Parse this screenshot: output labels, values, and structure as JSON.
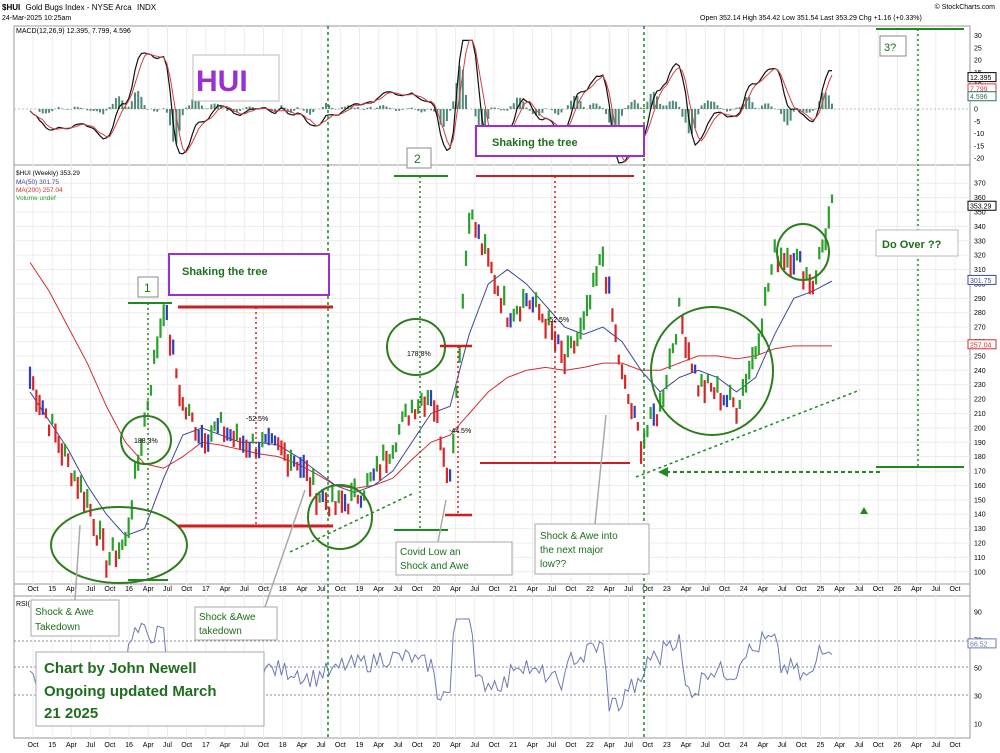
{
  "header": {
    "symbol": "$HUI",
    "name": "Gold Bugs Index - NYSE Arca",
    "exchange": "INDX",
    "date": "24-Mar-2025 10:25am",
    "ohlc": "Open 352.14 High 354.42 Low 351.54 Last 353.29 Chg +1.16 (+0.33%)",
    "credit": "© StockCharts.com"
  },
  "macd_panel": {
    "legend": "MACD(12,26,9) 12.395, 7.799, 4.596",
    "title": "HUI",
    "y_ticks": [
      "30",
      "25",
      "20",
      "15",
      "10",
      "5",
      "0",
      "-5",
      "-10",
      "-15",
      "-20"
    ],
    "value_labels": [
      "12.395",
      "7.799",
      "4.596"
    ]
  },
  "price_panel": {
    "legend": [
      "$HUI (Weekly) 353.29",
      "MA(50) 301.75",
      "MA(200) 257.04",
      "Volume undef"
    ],
    "y_ticks": [
      "370",
      "360",
      "350",
      "340",
      "330",
      "320",
      "310",
      "300",
      "290",
      "280",
      "270",
      "260",
      "250",
      "240",
      "230",
      "220",
      "210",
      "200",
      "190",
      "180",
      "170",
      "160",
      "150",
      "140",
      "130",
      "120",
      "110",
      "100"
    ],
    "value_labels": [
      "353.29",
      "301.75",
      "257.04"
    ]
  },
  "rsi_panel": {
    "legend": "RSI(14) 66.52",
    "y_ticks": [
      "90",
      "70",
      "50",
      "30",
      "10"
    ],
    "value_label": "66.52"
  },
  "x_axis": {
    "labels": [
      "Oct",
      "15",
      "Apr",
      "Jul",
      "Oct",
      "16",
      "Apr",
      "Jul",
      "Oct",
      "17",
      "Apr",
      "Jul",
      "Oct",
      "18",
      "Apr",
      "Jul",
      "Oct",
      "19",
      "Apr",
      "Jul",
      "Oct",
      "20",
      "Apr",
      "Jul",
      "Oct",
      "21",
      "Apr",
      "Jul",
      "Oct",
      "22",
      "Apr",
      "Jul",
      "Oct",
      "23",
      "Apr",
      "Jul",
      "Oct",
      "24",
      "Apr",
      "Jul",
      "Oct",
      "25",
      "Apr",
      "Jul",
      "Oct",
      "26",
      "Apr",
      "Jul",
      "Oct"
    ]
  },
  "annotations": {
    "wave1": "1",
    "wave2": "2",
    "wave3": "3?",
    "shaking1": "Shaking the tree",
    "shaking2": "Shaking the tree",
    "pct_188": "188.3%",
    "pct_52a": "-52.5%",
    "pct_178": "178.8%",
    "pct_44": "-44.5%",
    "pct_52b": "-52.5%",
    "do_over": "Do Over ??",
    "shock1": [
      "Shock & Awe",
      "Takedown"
    ],
    "shock2": [
      "Shock &Awe",
      "takedown"
    ],
    "covid": [
      "Covid Low an",
      "Shock and Awe"
    ],
    "shock3": [
      "Shock & Awe into",
      "the next major",
      "low??"
    ],
    "credit": [
      "Chart by John Newell",
      "Ongoing updated March",
      "21 2025"
    ]
  },
  "colors": {
    "up": "#2ca02c",
    "down": "#d62728",
    "neutral": "#2b3fbf",
    "ma50": "#3a4a9a",
    "ma200": "#d03030",
    "annotation_green": "#2e7d1e",
    "annotation_red": "#cc1f1f",
    "annotation_purple": "#9b30d0",
    "guide_green": "#1f8a1f"
  },
  "chart_data": {
    "type": "line",
    "title": "$HUI Gold Bugs Index - NYSE Arca (Weekly)",
    "x": [
      "2014-10",
      "2015-01",
      "2015-04",
      "2015-07",
      "2015-10",
      "2016-01",
      "2016-04",
      "2016-07",
      "2016-10",
      "2017-01",
      "2017-04",
      "2017-07",
      "2017-10",
      "2018-01",
      "2018-04",
      "2018-07",
      "2018-10",
      "2019-01",
      "2019-04",
      "2019-07",
      "2019-10",
      "2020-01",
      "2020-04",
      "2020-07",
      "2020-10",
      "2021-01",
      "2021-04",
      "2021-07",
      "2021-10",
      "2022-01",
      "2022-04",
      "2022-07",
      "2022-10",
      "2023-01",
      "2023-04",
      "2023-07",
      "2023-10",
      "2024-01",
      "2024-04",
      "2024-07",
      "2024-10",
      "2025-01",
      "2025-03"
    ],
    "ylim": [
      95,
      375
    ],
    "series": [
      {
        "name": "$HUI",
        "values": [
          235,
          205,
          175,
          150,
          108,
          120,
          205,
          285,
          215,
          195,
          200,
          190,
          188,
          185,
          178,
          155,
          145,
          152,
          165,
          190,
          215,
          225,
          165,
          350,
          315,
          280,
          290,
          275,
          245,
          270,
          320,
          235,
          190,
          215,
          280,
          230,
          225,
          215,
          255,
          320,
          320,
          300,
          353
        ]
      },
      {
        "name": "MA(50)",
        "values": [
          225,
          205,
          185,
          160,
          140,
          125,
          130,
          165,
          195,
          200,
          195,
          190,
          190,
          188,
          180,
          170,
          160,
          155,
          160,
          170,
          190,
          210,
          215,
          265,
          300,
          310,
          300,
          285,
          270,
          265,
          270,
          260,
          240,
          225,
          235,
          240,
          235,
          225,
          235,
          265,
          290,
          295,
          302
        ]
      },
      {
        "name": "MA(200)",
        "values": [
          315,
          295,
          270,
          245,
          215,
          190,
          175,
          172,
          180,
          190,
          188,
          185,
          182,
          180,
          175,
          168,
          160,
          158,
          160,
          165,
          178,
          190,
          195,
          210,
          225,
          235,
          240,
          242,
          240,
          242,
          245,
          245,
          240,
          240,
          245,
          250,
          250,
          248,
          250,
          255,
          257,
          257,
          257
        ]
      }
    ]
  }
}
